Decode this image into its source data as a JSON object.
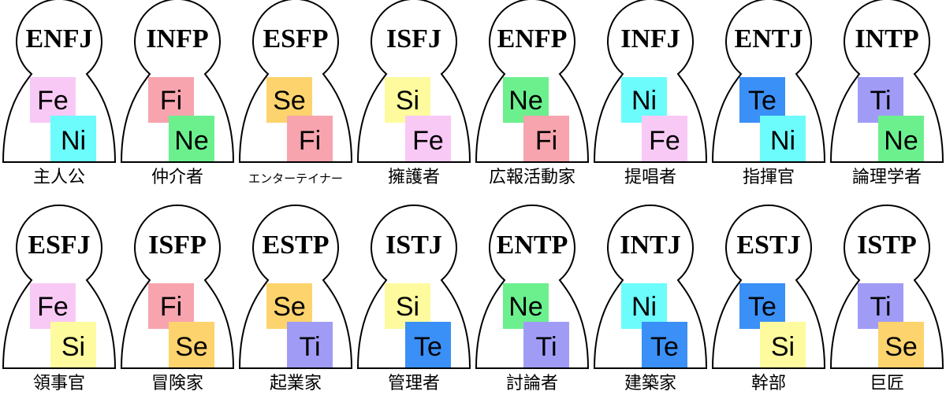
{
  "colors": {
    "Fe": "#f9c9f6",
    "Fi": "#f7a4ae",
    "Ne": "#6cf08e",
    "Ni": "#6cfcfc",
    "Se": "#fdd36e",
    "Si": "#fdfb9e",
    "Te": "#3a90f6",
    "Ti": "#a09cf6"
  },
  "nodes": [
    {
      "type": "ENFJ",
      "dominant": "Fe",
      "auxiliary": "Ni",
      "name": "主人公"
    },
    {
      "type": "INFP",
      "dominant": "Fi",
      "auxiliary": "Ne",
      "name": "仲介者"
    },
    {
      "type": "ESFP",
      "dominant": "Se",
      "auxiliary": "Fi",
      "name": "エンターテイナー"
    },
    {
      "type": "ISFJ",
      "dominant": "Si",
      "auxiliary": "Fe",
      "name": "擁護者"
    },
    {
      "type": "ENFP",
      "dominant": "Ne",
      "auxiliary": "Fi",
      "name": "広報活動家"
    },
    {
      "type": "INFJ",
      "dominant": "Ni",
      "auxiliary": "Fe",
      "name": "提唱者"
    },
    {
      "type": "ENTJ",
      "dominant": "Te",
      "auxiliary": "Ni",
      "name": "指揮官"
    },
    {
      "type": "INTP",
      "dominant": "Ti",
      "auxiliary": "Ne",
      "name": "論理学者"
    },
    {
      "type": "ESFJ",
      "dominant": "Fe",
      "auxiliary": "Si",
      "name": "領事官"
    },
    {
      "type": "ISFP",
      "dominant": "Fi",
      "auxiliary": "Se",
      "name": "冒険家"
    },
    {
      "type": "ESTP",
      "dominant": "Se",
      "auxiliary": "Ti",
      "name": "起業家"
    },
    {
      "type": "ISTJ",
      "dominant": "Si",
      "auxiliary": "Te",
      "name": "管理者"
    },
    {
      "type": "ENTP",
      "dominant": "Ne",
      "auxiliary": "Ti",
      "name": "討論者"
    },
    {
      "type": "INTJ",
      "dominant": "Ni",
      "auxiliary": "Te",
      "name": "建築家"
    },
    {
      "type": "ESTJ",
      "dominant": "Te",
      "auxiliary": "Si",
      "name": "幹部"
    },
    {
      "type": "ISTP",
      "dominant": "Ti",
      "auxiliary": "Se",
      "name": "巨匠"
    }
  ]
}
